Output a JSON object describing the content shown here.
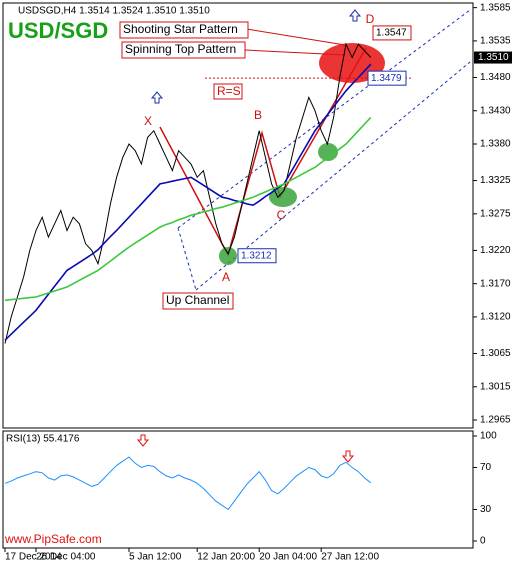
{
  "chart_data": [
    {
      "type": "line",
      "header": "USDSGD,H4 1.3514 1.3524 1.3510 1.3510",
      "title": "USD/SGD",
      "watermark": "www.PipSafe.com",
      "x": [
        "17 Dec 2014",
        null,
        null,
        null,
        null,
        "26 Dec 04:00",
        null,
        null,
        null,
        null,
        null,
        null,
        null,
        null,
        null,
        null,
        null,
        null,
        null,
        null,
        "5 Jan 12:00",
        null,
        null,
        null,
        null,
        null,
        null,
        null,
        null,
        null,
        null,
        "12 Jan 20:00",
        null,
        null,
        null,
        null,
        null,
        null,
        null,
        null,
        null,
        "20 Jan 04:00",
        null,
        null,
        null,
        null,
        null,
        null,
        null,
        null,
        null,
        "27 Jan 12:00",
        null,
        null,
        null,
        null,
        null,
        null,
        null,
        null
      ],
      "series": [
        {
          "name": "Close",
          "color": "#000000",
          "values": [
            1.308,
            1.312,
            1.315,
            1.318,
            1.322,
            1.325,
            1.327,
            1.324,
            1.326,
            1.328,
            1.325,
            1.327,
            1.326,
            1.323,
            1.322,
            1.32,
            1.324,
            1.329,
            1.333,
            1.336,
            1.338,
            1.337,
            1.335,
            1.339,
            1.34,
            1.338,
            1.336,
            1.334,
            1.337,
            1.336,
            1.335,
            1.333,
            1.334,
            1.33,
            1.326,
            1.323,
            1.3215,
            1.324,
            1.328,
            1.332,
            1.336,
            1.34,
            1.336,
            1.332,
            1.33,
            1.331,
            1.335,
            1.339,
            1.342,
            1.345,
            1.343,
            1.34,
            1.338,
            1.342,
            1.348,
            1.353,
            1.351,
            1.353,
            1.352,
            1.351
          ]
        },
        {
          "name": "Fast MA",
          "color": "#0a0ab4",
          "values": [
            1.3085,
            1.3094,
            1.3103,
            1.3112,
            1.3121,
            1.313,
            1.3142,
            1.3154,
            1.3166,
            1.3178,
            1.319,
            1.3196,
            1.3202,
            1.3208,
            1.3214,
            1.3221,
            1.3231,
            1.3241,
            1.325,
            1.326,
            1.327,
            1.328,
            1.329,
            1.33,
            1.331,
            1.332,
            1.3322,
            1.3324,
            1.3326,
            1.3328,
            1.333,
            1.3324,
            1.3318,
            1.3312,
            1.3306,
            1.33,
            1.3298,
            1.3295,
            1.3293,
            1.329,
            1.3288,
            1.3294,
            1.3301,
            1.3307,
            1.3314,
            1.332,
            1.3336,
            1.3352,
            1.3368,
            1.3384,
            1.34,
            1.3412,
            1.3424,
            1.3436,
            1.3448,
            1.346,
            1.347,
            1.348,
            1.349,
            1.35
          ]
        },
        {
          "name": "Slow MA",
          "color": "#3cc83c",
          "values": [
            1.3145,
            1.3146,
            1.3147,
            1.3148,
            1.3149,
            1.315,
            1.3153,
            1.3156,
            1.3159,
            1.3162,
            1.3165,
            1.317,
            1.3175,
            1.318,
            1.3185,
            1.319,
            1.3197,
            1.3204,
            1.3211,
            1.3218,
            1.3225,
            1.3231,
            1.3237,
            1.3243,
            1.3249,
            1.3255,
            1.3259,
            1.3262,
            1.3266,
            1.3269,
            1.3273,
            1.3275,
            1.3278,
            1.328,
            1.3283,
            1.3285,
            1.3288,
            1.3291,
            1.3294,
            1.3297,
            1.33,
            1.3304,
            1.3308,
            1.3312,
            1.3316,
            1.332,
            1.3325,
            1.333,
            1.3335,
            1.334,
            1.3345,
            1.3352,
            1.3359,
            1.3366,
            1.3373,
            1.338,
            1.339,
            1.34,
            1.341,
            1.342
          ]
        }
      ],
      "ylim": [
        1.2953,
        1.3592
      ],
      "yticks": [
        1.3585,
        1.3535,
        {
          "value": 1.348,
          "label": "1.3480"
        },
        {
          "value": 1.343,
          "label": "1.3430"
        },
        {
          "value": 1.338,
          "label": "1.3380"
        },
        1.3325,
        1.3275,
        {
          "value": 1.322,
          "label": "1.3220"
        },
        {
          "value": 1.317,
          "label": "1.3170"
        },
        {
          "value": 1.312,
          "label": "1.3120"
        },
        1.3065,
        1.3015,
        1.2965
      ],
      "last_price": {
        "value": 1.351,
        "label": "1.3510"
      },
      "levels": [
        1.3547,
        1.3479,
        1.3212
      ],
      "pattern_labels": [
        "Shooting Star Pattern",
        "Spinning Top Pattern"
      ],
      "points": [
        "X",
        "A",
        "B",
        "C",
        "D"
      ],
      "equality_label": "R=S",
      "channel_label": "Up Channel",
      "grid": false
    },
    {
      "type": "line",
      "title": "RSI(13) 55.4176",
      "series": [
        {
          "name": "RSI",
          "color": "#1e90ff",
          "values": [
            55,
            57,
            60,
            62,
            64,
            66,
            65,
            60,
            58,
            62,
            63,
            61,
            58,
            55,
            52,
            54,
            60,
            66,
            72,
            76,
            80,
            74,
            70,
            72,
            71,
            66,
            62,
            60,
            63,
            60,
            58,
            55,
            50,
            44,
            38,
            34,
            30,
            38,
            46,
            54,
            60,
            66,
            58,
            48,
            45,
            50,
            56,
            62,
            66,
            70,
            68,
            62,
            60,
            64,
            72,
            75,
            70,
            66,
            60,
            55.4176
          ]
        }
      ],
      "ylim": [
        0,
        100
      ],
      "yticks": [
        100,
        70,
        30,
        0
      ],
      "grid": false
    }
  ]
}
